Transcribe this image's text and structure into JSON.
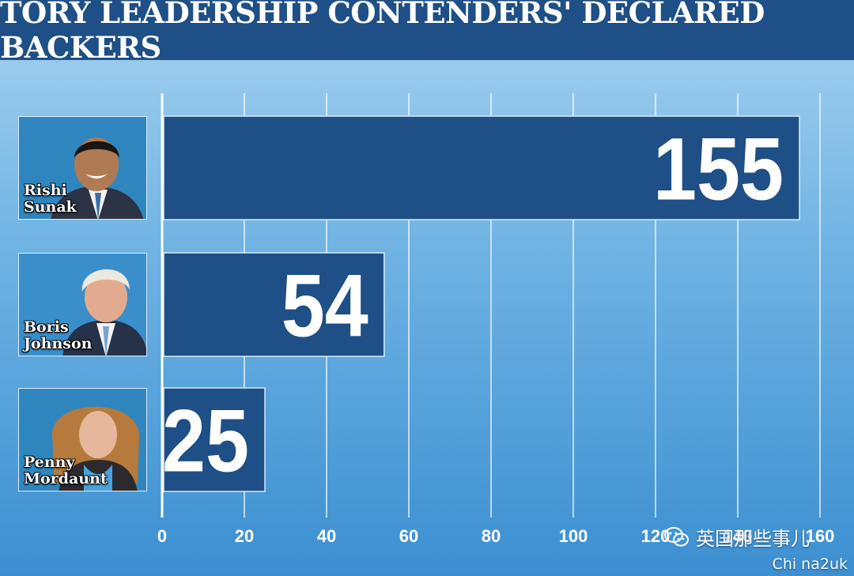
{
  "header": {
    "title": "TORY LEADERSHIP CONTENDERS' DECLARED BACKERS"
  },
  "colors": {
    "title_bar": "#1e4f86",
    "bar_fill": "#1e4f86",
    "bar_border": "#d9ecf8",
    "grid": "#ffffff"
  },
  "chart_data": {
    "type": "bar",
    "orientation": "horizontal",
    "title": "TORY LEADERSHIP CONTENDERS' DECLARED BACKERS",
    "categories": [
      "Rishi Sunak",
      "Boris Johnson",
      "Penny Mordaunt"
    ],
    "values": [
      155,
      54,
      25
    ],
    "x_ticks": [
      "0",
      "20",
      "40",
      "60",
      "80",
      "100",
      "120",
      "140",
      "160"
    ],
    "xlim": [
      0,
      160
    ],
    "grid": true,
    "data_labels": [
      "155",
      "54",
      "25"
    ]
  },
  "candidates": [
    {
      "first": "Rishi",
      "last": "Sunak",
      "photo": "rishi-sunak-photo"
    },
    {
      "first": "Boris",
      "last": "Johnson",
      "photo": "boris-johnson-photo"
    },
    {
      "first": "Penny",
      "last": "Mordaunt",
      "photo": "penny-mordaunt-photo"
    }
  ],
  "watermark": {
    "icon": "wechat-icon",
    "text": "英国那些事儿",
    "site": "Chi na2uk"
  }
}
